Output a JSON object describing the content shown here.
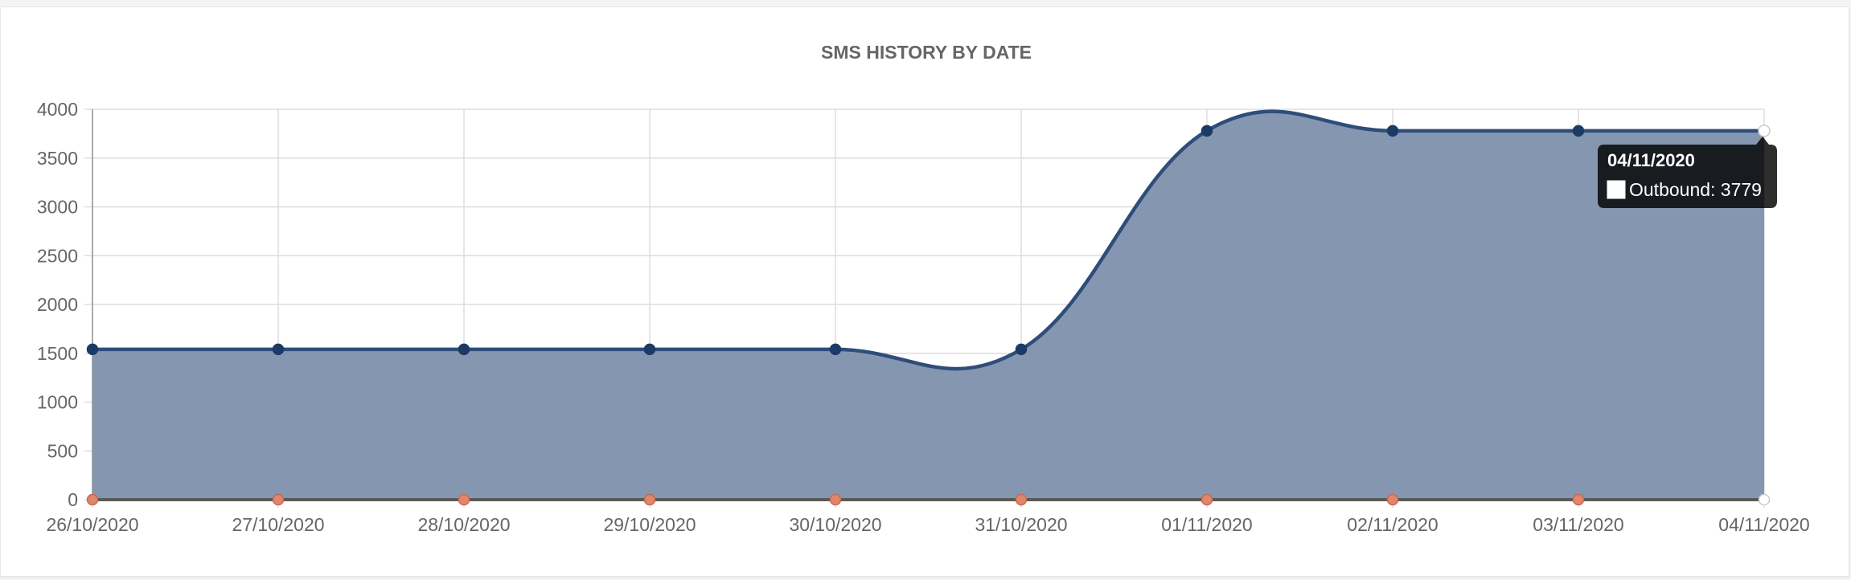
{
  "chart_data": {
    "type": "area",
    "title": "SMS HISTORY BY DATE",
    "categories": [
      "26/10/2020",
      "27/10/2020",
      "28/10/2020",
      "29/10/2020",
      "30/10/2020",
      "31/10/2020",
      "01/11/2020",
      "02/11/2020",
      "03/11/2020",
      "04/11/2020"
    ],
    "ylim": [
      0,
      4000
    ],
    "yticks": [
      0,
      500,
      1000,
      1500,
      2000,
      2500,
      3000,
      3500,
      4000
    ],
    "grid": true,
    "series": [
      {
        "name": "Outbound",
        "values": [
          1540,
          1540,
          1540,
          1540,
          1540,
          1540,
          3779,
          3779,
          3779,
          3779
        ],
        "color": "#2f4d7a",
        "fill": "#8597b0"
      },
      {
        "values": [
          0,
          0,
          0,
          0,
          0,
          0,
          0,
          0,
          0,
          0
        ],
        "color": "#e0876b"
      }
    ],
    "tooltip": {
      "title": "04/11/2020",
      "label": "Outbound: 3779"
    }
  }
}
